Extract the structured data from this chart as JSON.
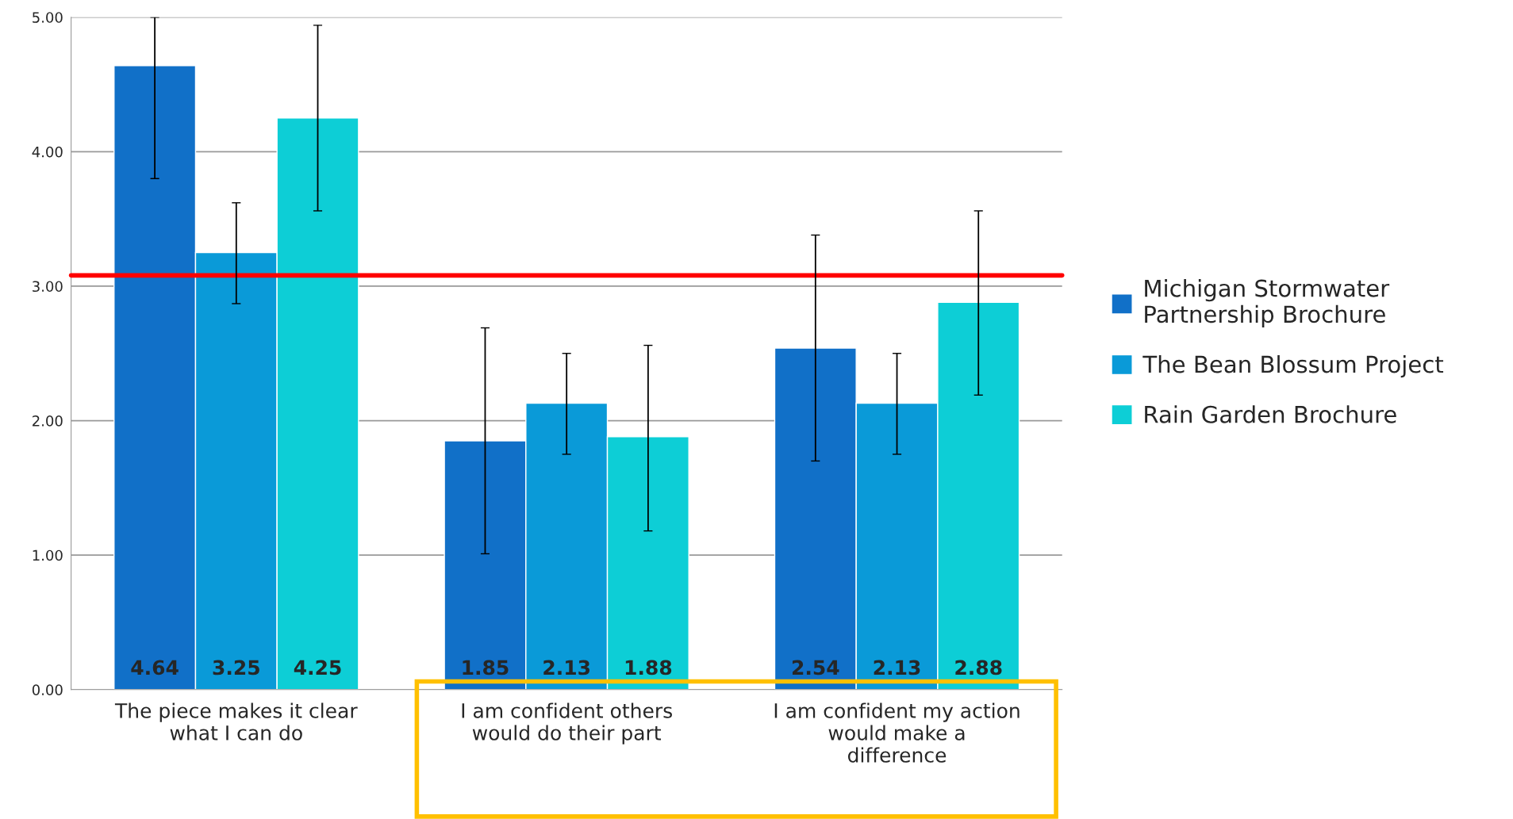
{
  "chart_data": {
    "type": "bar",
    "categories": [
      "The piece makes it clear\nwhat I can do",
      "I am confident others\nwould do their part",
      "I am confident my action\nwould make a\ndifference"
    ],
    "series": [
      {
        "name": "Michigan Stormwater\nPartnership Brochure",
        "color": "#1170c8",
        "values": [
          4.64,
          1.85,
          2.54
        ],
        "errors": [
          [
            3.8,
            5.0
          ],
          [
            1.01,
            2.69
          ],
          [
            1.7,
            3.38
          ]
        ]
      },
      {
        "name": "The Bean Blossum Project",
        "color": "#0a9ad8",
        "values": [
          3.25,
          2.13,
          2.13
        ],
        "errors": [
          [
            2.87,
            3.62
          ],
          [
            1.75,
            2.5
          ],
          [
            1.75,
            2.5
          ]
        ]
      },
      {
        "name": "Rain Garden Brochure",
        "color": "#0dced6",
        "values": [
          4.25,
          1.88,
          2.88
        ],
        "errors": [
          [
            3.56,
            4.94
          ],
          [
            1.18,
            2.56
          ],
          [
            2.19,
            3.56
          ]
        ]
      }
    ],
    "ylim": [
      0,
      5
    ],
    "yticks": [
      {
        "value": 0,
        "label": "0.00"
      },
      {
        "value": 1,
        "label": "1.00"
      },
      {
        "value": 2,
        "label": "2.00"
      },
      {
        "value": 3,
        "label": "3.00"
      },
      {
        "value": 4,
        "label": "4.00"
      },
      {
        "value": 5,
        "label": "5.00"
      }
    ],
    "ref_lines": [
      {
        "axis": "y",
        "value": 3.08,
        "color": "#ff0000"
      }
    ],
    "grid": "y",
    "legend": "right",
    "data_labels": true
  }
}
